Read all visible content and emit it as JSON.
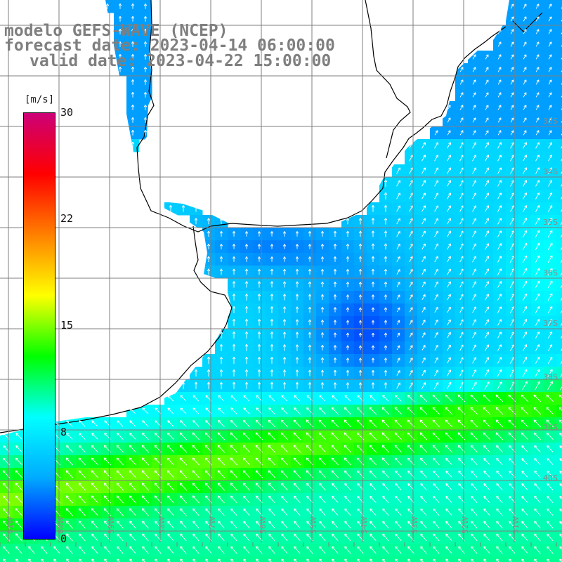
{
  "title": {
    "line1": "modelo GEFS-WAVE (NCEP)",
    "line2": "forecast date: 2023-04-14 06:00:00",
    "line3": "valid date: 2023-04-22 15:00:00"
  },
  "colorbar": {
    "units": "[m/s]",
    "min": 0,
    "max": 30,
    "ticks": [
      "30",
      "22",
      "15",
      "8",
      "0"
    ],
    "colors": [
      "#0000ff",
      "#00aaff",
      "#00ffff",
      "#00ff00",
      "#ffff00",
      "#ff8000",
      "#ff0000",
      "#cc0077"
    ]
  },
  "map": {
    "variable": "wind speed and direction",
    "lon_labels": [
      "61W",
      "60W",
      "59W",
      "58W",
      "57W",
      "56W",
      "55W",
      "54W",
      "53W",
      "52W",
      "51W"
    ],
    "lat_labels": [
      "33S",
      "34S",
      "35S",
      "36S",
      "37S",
      "38S",
      "39S",
      "40S"
    ],
    "land_color": "#ffffff",
    "coastline_color": "#000000",
    "arrow_color": "#ffffff",
    "grid_color": "#7f7f7f"
  }
}
